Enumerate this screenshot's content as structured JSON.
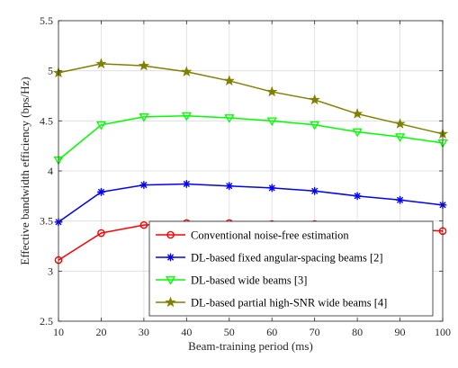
{
  "chart_data": {
    "type": "line",
    "title": "",
    "xlabel": "Beam-training period (ms)",
    "ylabel": "Effective bandwidth efficiency (bps/Hz)",
    "xlim": [
      10,
      100
    ],
    "ylim": [
      2.5,
      5.5
    ],
    "xticks": [
      "10",
      "20",
      "30",
      "40",
      "50",
      "60",
      "70",
      "80",
      "90",
      "100"
    ],
    "yticks": [
      "2.5",
      "3",
      "3.5",
      "4",
      "4.5",
      "5",
      "5.5"
    ],
    "grid": true,
    "legend_position": "bottom-right",
    "x": [
      10,
      20,
      30,
      40,
      50,
      60,
      70,
      80,
      90,
      100
    ],
    "series": [
      {
        "name": "Conventional noise-free estimation",
        "color": "#ff0000",
        "marker": "circle",
        "values": [
          3.11,
          3.38,
          3.46,
          3.48,
          3.48,
          3.47,
          3.47,
          3.44,
          3.42,
          3.4
        ]
      },
      {
        "name": "DL-based fixed angular-spacing beams [2]",
        "color": "#0000ff",
        "marker": "asterisk",
        "values": [
          3.49,
          3.79,
          3.86,
          3.87,
          3.85,
          3.83,
          3.8,
          3.75,
          3.71,
          3.66
        ]
      },
      {
        "name": "DL-based wide beams [3]",
        "color": "#00ff00",
        "marker": "triangle-down",
        "values": [
          4.11,
          4.46,
          4.54,
          4.55,
          4.53,
          4.5,
          4.46,
          4.39,
          4.34,
          4.28
        ]
      },
      {
        "name": "DL-based partial high-SNR wide beams [4]",
        "color": "#808000",
        "marker": "star",
        "values": [
          4.98,
          5.07,
          5.05,
          4.99,
          4.9,
          4.79,
          4.71,
          4.57,
          4.47,
          4.37
        ]
      }
    ]
  }
}
